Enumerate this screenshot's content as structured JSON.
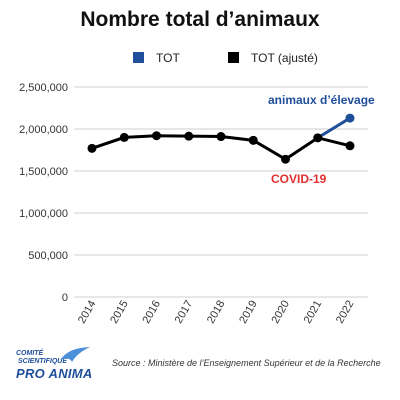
{
  "chart_data": {
    "type": "line",
    "title": "Nombre total d’animaux",
    "categories": [
      "2014",
      "2015",
      "2016",
      "2017",
      "2018",
      "2019",
      "2020",
      "2021",
      "2022"
    ],
    "series": [
      {
        "name": "TOT",
        "color": "#1f4e9a",
        "values": [
          1770000,
          1900000,
          1920000,
          1915000,
          1910000,
          1865000,
          1640000,
          1895000,
          2130000
        ]
      },
      {
        "name": "TOT (ajusté)",
        "color": "#000000",
        "values": [
          1770000,
          1900000,
          1920000,
          1915000,
          1910000,
          1865000,
          1640000,
          1895000,
          1800000
        ]
      }
    ],
    "ylim": [
      0,
      2500000
    ],
    "yticks": [
      "2,500,000",
      "2,000,000",
      "1,500,000",
      "1,000,000",
      "500,000",
      "0"
    ],
    "ytick_values": [
      2500000,
      2000000,
      1500000,
      1000000,
      500000,
      0
    ],
    "legend_position": "top",
    "grid": true,
    "annotations": [
      {
        "text": "animaux d’élevage",
        "color": "#1f4e9a"
      },
      {
        "text": "COVID-19",
        "color": "#e03030"
      }
    ]
  },
  "footer": {
    "source": "Source : Ministère de l’Enseignement Supérieur et de la Recherche",
    "logo_line1": "COMITÉ",
    "logo_line2": "SCIENTIFIQUE",
    "logo_line3": "PRO ANIMA"
  }
}
